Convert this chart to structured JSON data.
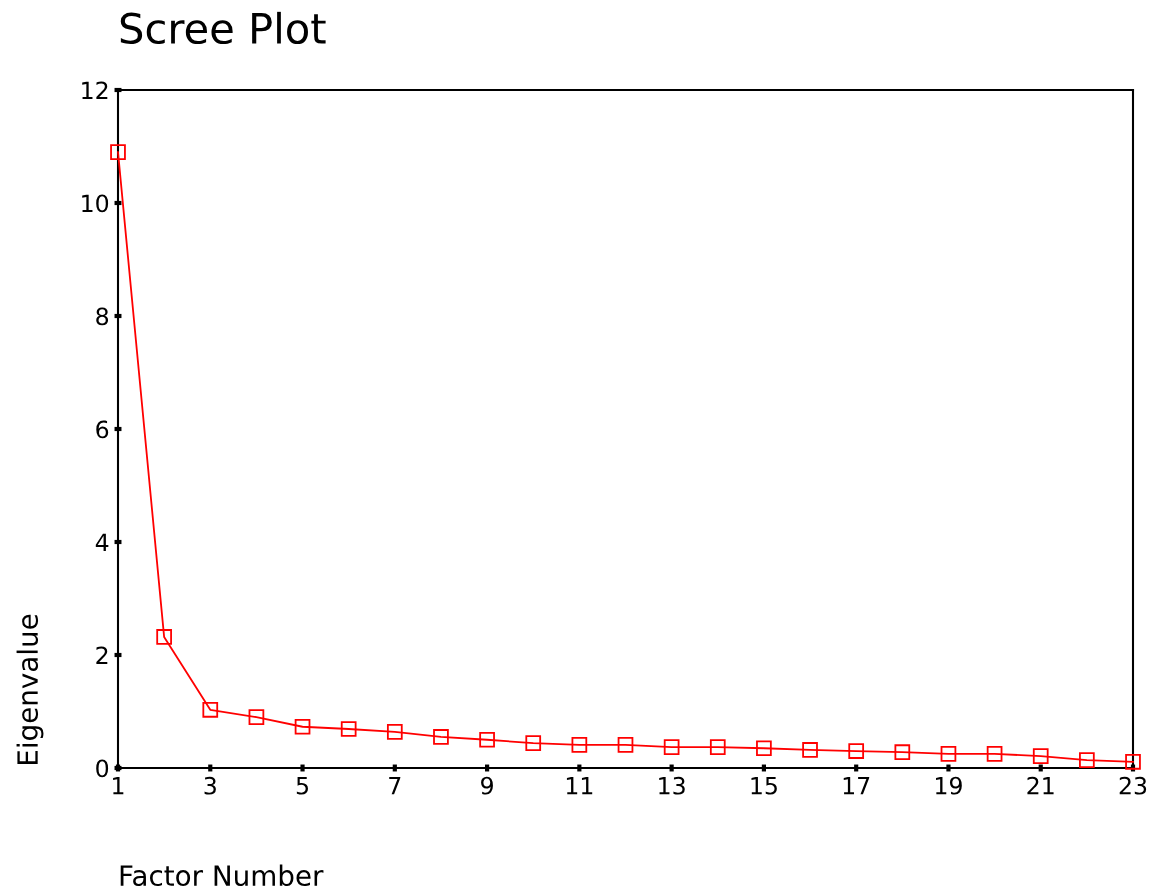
{
  "chart_data": {
    "type": "line",
    "title": "Scree Plot",
    "xlabel": "Factor Number",
    "ylabel": "Eigenvalue",
    "x": [
      1,
      2,
      3,
      4,
      5,
      6,
      7,
      8,
      9,
      10,
      11,
      12,
      13,
      14,
      15,
      16,
      17,
      18,
      19,
      20,
      21,
      22,
      23
    ],
    "series": [
      {
        "color": "#ff0000",
        "values": [
          10.9,
          2.32,
          1.03,
          0.9,
          0.73,
          0.69,
          0.64,
          0.55,
          0.5,
          0.44,
          0.41,
          0.41,
          0.37,
          0.37,
          0.35,
          0.32,
          0.3,
          0.28,
          0.25,
          0.25,
          0.21,
          0.14,
          0.11
        ]
      }
    ],
    "xlim": [
      1,
      23
    ],
    "xticks": [
      1,
      3,
      5,
      7,
      9,
      11,
      13,
      15,
      17,
      19,
      21,
      23
    ],
    "ylim": [
      0,
      12
    ],
    "yticks": [
      0,
      2,
      4,
      6,
      8,
      10,
      12
    ],
    "marker": "square",
    "line_style": "solid",
    "grid": false
  }
}
